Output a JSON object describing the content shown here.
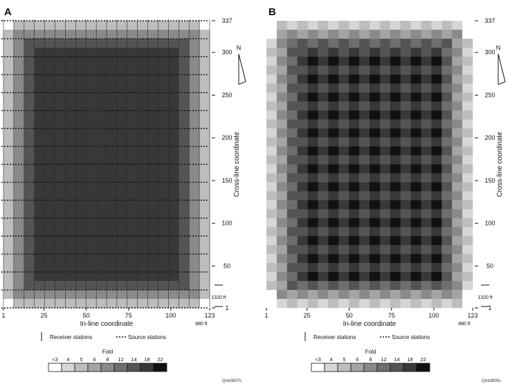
{
  "panels": [
    {
      "letter": "A",
      "code": "QAb3807c",
      "pattern": "rim",
      "scale_label_long": "1320 ft",
      "scale_label_short": "880 ft"
    },
    {
      "letter": "B",
      "code": "QAb3805c",
      "pattern": "checker",
      "scale_label_long": "1320 ft",
      "scale_label_short": "880 ft"
    }
  ],
  "colors": {
    "fold_scale": [
      "#ffffff",
      "#d6d6d6",
      "#bdbdbd",
      "#a4a4a4",
      "#8a8a8a",
      "#6e6e6e",
      "#545454",
      "#383838",
      "#111111"
    ],
    "line": "#111111"
  },
  "chart_data": [
    {
      "type": "heatmap",
      "panel": "A",
      "xlabel": "In-line coordinate",
      "ylabel": "Cross-line coordinate",
      "x_ticks": [
        1,
        25,
        50,
        75,
        100,
        123
      ],
      "y_ticks": [
        1,
        50,
        100,
        150,
        200,
        250,
        300,
        337
      ],
      "xlim": [
        1,
        123
      ],
      "ylim": [
        1,
        337
      ],
      "description_values": "fold coverage: interior 18-22, ramping to <3 at edges",
      "legend": {
        "title": "Fold",
        "labels": [
          "<3",
          "4",
          "5",
          "6",
          "8",
          "12",
          "14",
          "18",
          "22"
        ]
      },
      "key": [
        "Receiver stations",
        "Source stations"
      ]
    },
    {
      "type": "heatmap",
      "panel": "B",
      "xlabel": "In-line coordinate",
      "ylabel": "Cross-line coordinate",
      "x_ticks": [
        1,
        25,
        50,
        75,
        100,
        123
      ],
      "y_ticks": [
        1,
        50,
        100,
        150,
        200,
        250,
        300,
        337
      ],
      "xlim": [
        1,
        123
      ],
      "ylim": [
        1,
        337
      ],
      "legend": {
        "title": "Fold",
        "labels": [
          "<3",
          "4",
          "5",
          "6",
          "8",
          "12",
          "14",
          "18",
          "22"
        ]
      },
      "key": [
        "Receiver stations",
        "Source stations"
      ]
    }
  ]
}
